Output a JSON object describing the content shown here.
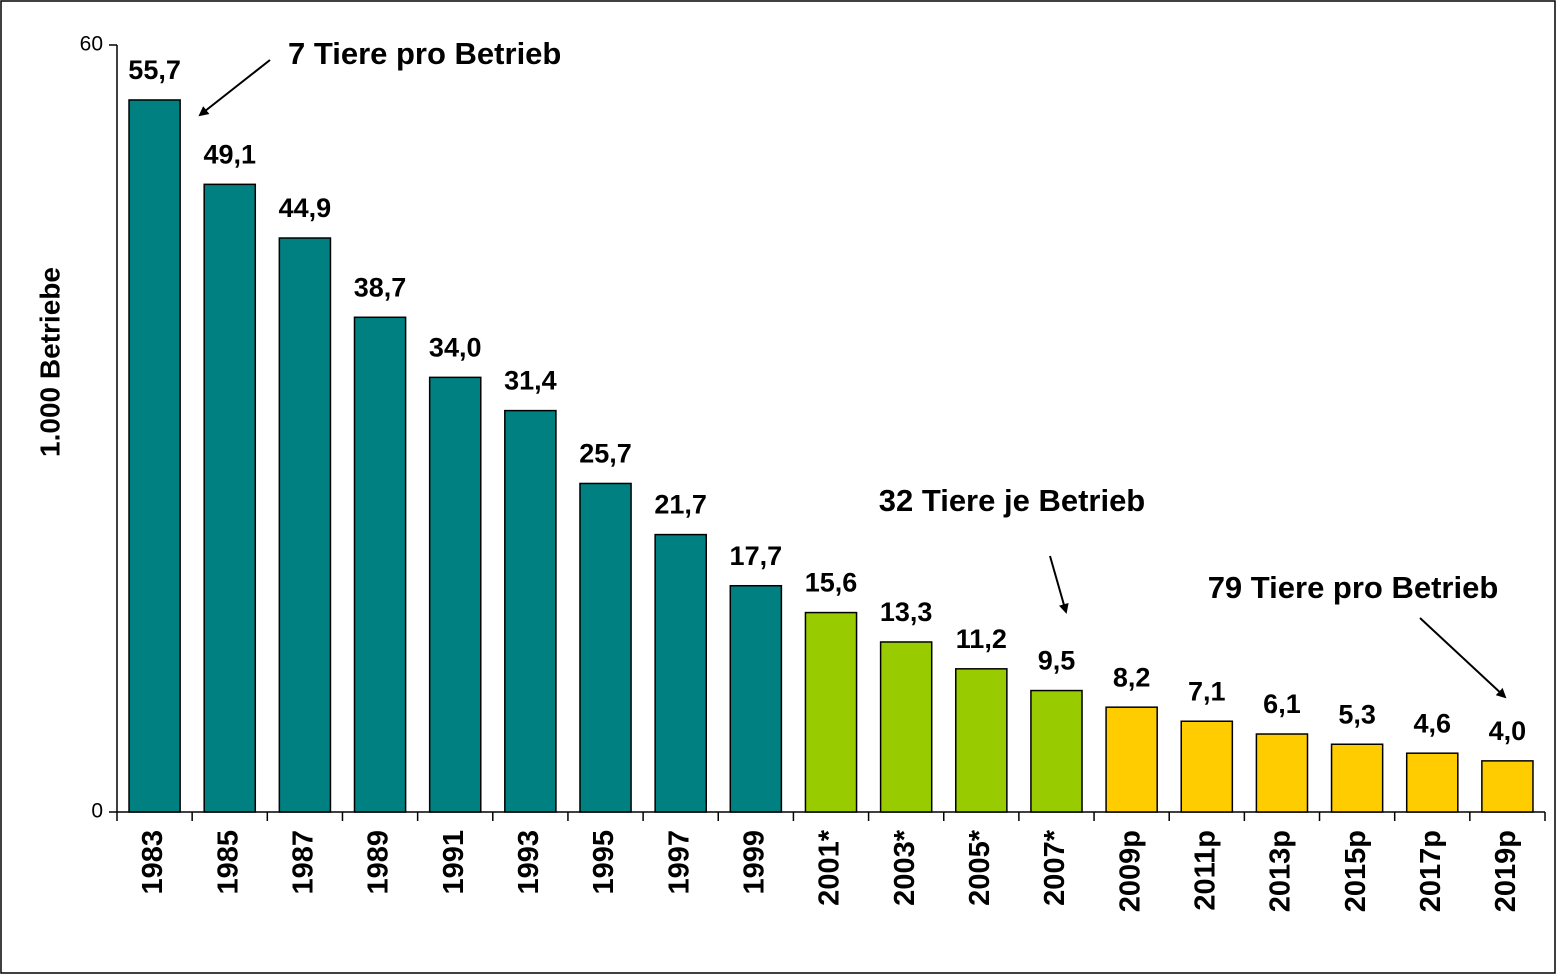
{
  "chart_data": {
    "type": "bar",
    "y_label": "1.000 Betriebe",
    "categories": [
      "1983",
      "1985",
      "1987",
      "1989",
      "1991",
      "1993",
      "1995",
      "1997",
      "1999",
      "2001*",
      "2003*",
      "2005*",
      "2007*",
      "2009p",
      "2011p",
      "2013p",
      "2015p",
      "2017p",
      "2019p"
    ],
    "values": [
      55.7,
      49.1,
      44.9,
      38.7,
      34.0,
      31.4,
      25.7,
      21.7,
      17.7,
      15.6,
      13.3,
      11.2,
      9.5,
      8.2,
      7.1,
      6.1,
      5.3,
      4.6,
      4.0
    ],
    "value_labels": [
      "55,7",
      "49,1",
      "44,9",
      "38,7",
      "34,0",
      "31,4",
      "25,7",
      "21,7",
      "17,7",
      "15,6",
      "13,3",
      "11,2",
      "9,5",
      "8,2",
      "7,1",
      "6,1",
      "5,3",
      "4,6",
      "4,0"
    ],
    "colors": [
      "#008080",
      "#008080",
      "#008080",
      "#008080",
      "#008080",
      "#008080",
      "#008080",
      "#008080",
      "#008080",
      "#99cc00",
      "#99cc00",
      "#99cc00",
      "#99cc00",
      "#ffcc00",
      "#ffcc00",
      "#ffcc00",
      "#ffcc00",
      "#ffcc00",
      "#ffcc00"
    ],
    "annotations": [
      "7 Tiere pro Betrieb",
      "32 Tiere je Betrieb",
      "79 Tiere pro Betrieb"
    ],
    "ylim": [
      0,
      60
    ],
    "yticks": [
      0,
      60
    ],
    "grid": false
  }
}
